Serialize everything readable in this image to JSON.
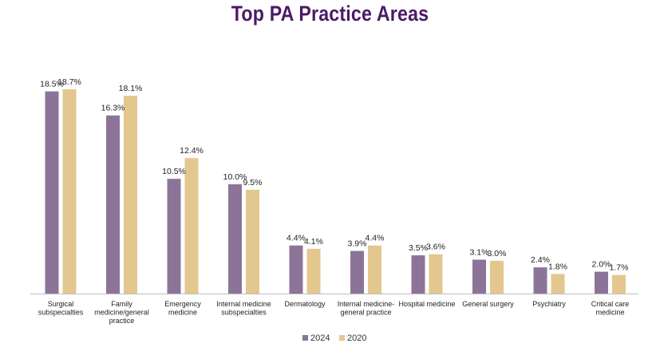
{
  "chart_data": {
    "type": "bar",
    "title": "Top PA Practice Areas",
    "xlabel": "",
    "ylabel": "",
    "ylim": [
      0,
      20
    ],
    "grid": false,
    "legend_position": "bottom",
    "categories": [
      [
        "Surgical",
        "subspecialties"
      ],
      [
        "Family",
        "medicine/general",
        "practice"
      ],
      [
        "Emergency",
        "medicine"
      ],
      [
        "Internal medicine",
        "subspecialties"
      ],
      [
        "Dermatology"
      ],
      [
        "Internal medicine-",
        "general practice"
      ],
      [
        "Hospital medicine"
      ],
      [
        "General surgery"
      ],
      [
        "Psychiatry"
      ],
      [
        "Critical care",
        "medicine"
      ]
    ],
    "series": [
      {
        "name": "2024",
        "color": "#8c7498",
        "values": [
          18.5,
          16.3,
          10.5,
          10.0,
          4.4,
          3.9,
          3.5,
          3.1,
          2.4,
          2.0
        ],
        "labels": [
          "18.5%",
          "16.3%",
          "10.5%",
          "10.0%",
          "4.4%",
          "3.9%",
          "3.5%",
          "3.1%",
          "2.4%",
          "2.0%"
        ]
      },
      {
        "name": "2020",
        "color": "#e3c78f",
        "values": [
          18.7,
          18.1,
          12.4,
          9.5,
          4.1,
          4.4,
          3.6,
          3.0,
          1.8,
          1.7
        ],
        "labels": [
          "18.7%",
          "18.1%",
          "12.4%",
          "9.5%",
          "4.1%",
          "4.4%",
          "3.6%",
          "3.0%",
          "1.8%",
          "1.7%"
        ]
      }
    ]
  }
}
